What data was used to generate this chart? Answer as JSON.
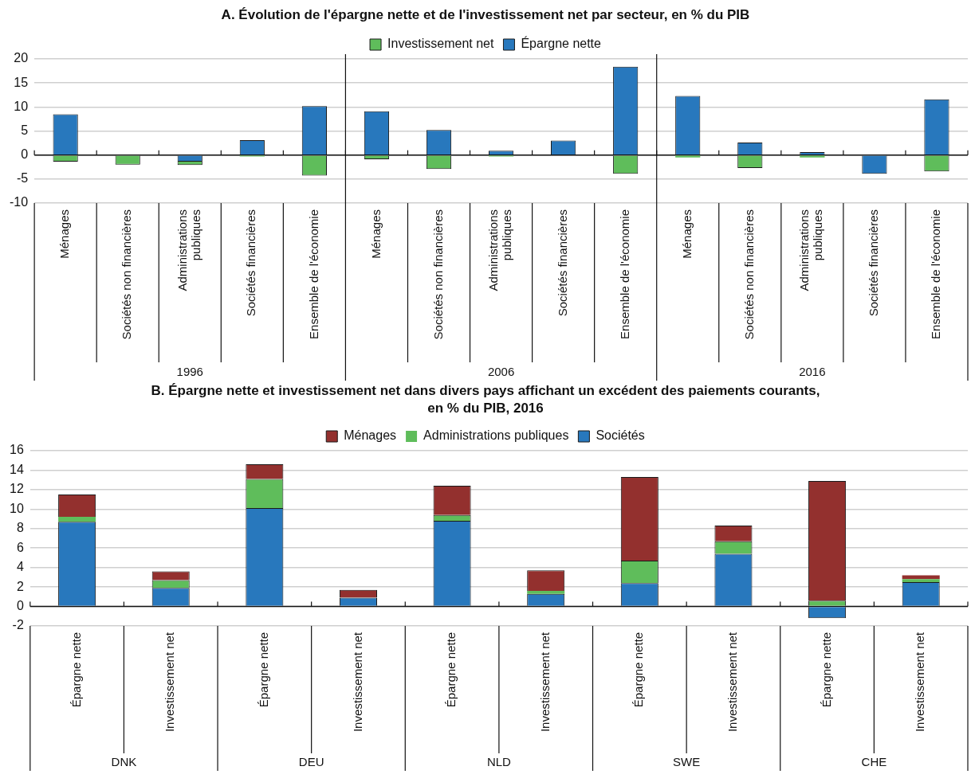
{
  "chart_data": [
    {
      "type": "bar",
      "title": "A. Évolution de l'épargne nette et de l'investissement net par secteur, en % du PIB",
      "categories": [
        "Ménages",
        "Sociétés non financières",
        "Administrations publiques",
        "Sociétés financières",
        "Ensemble de l'économie",
        "Ménages",
        "Sociétés non financières",
        "Administrations publiques",
        "Sociétés financières",
        "Ensemble de l'économie",
        "Ménages",
        "Sociétés non financières",
        "Administrations publiques",
        "Sociétés financières",
        "Ensemble de l'économie"
      ],
      "series": [
        {
          "name": "Épargne nette",
          "color": "#2878bd",
          "values": [
            8.5,
            0,
            -1.4,
            3.1,
            10.2,
            9.1,
            5.2,
            0.9,
            3.0,
            18.4,
            12.3,
            2.6,
            0.6,
            -3.9,
            11.6
          ]
        },
        {
          "name": "Investissement net",
          "color": "#5fbd5b",
          "values": [
            -1.4,
            -2.0,
            -0.7,
            -0.3,
            -4.3,
            -0.9,
            -2.9,
            -0.3,
            0,
            -3.9,
            -0.5,
            -2.7,
            -0.5,
            0,
            -3.4
          ]
        }
      ],
      "stacked": true,
      "ylim": [
        -10,
        20
      ],
      "yticks": [
        -10,
        -5,
        0,
        5,
        10,
        15,
        20
      ],
      "grid": "y",
      "legend": "top",
      "annotations": [
        "1996",
        "2006",
        "2016"
      ]
    },
    {
      "type": "bar",
      "title": "B. Épargne nette et investissement net dans divers pays affichant un excédent des paiements courants, en % du PIB, 2016",
      "categories": [
        "Épargne nette",
        "Investissement net",
        "Épargne nette",
        "Investissement net",
        "Épargne nette",
        "Investissement net",
        "Épargne nette",
        "Investissement net",
        "Épargne nette",
        "Investissement net"
      ],
      "series": [
        {
          "name": "Sociétés",
          "color": "#2878bd",
          "values": [
            8.7,
            1.9,
            10.1,
            0.9,
            8.8,
            1.3,
            2.4,
            5.4,
            -1.2,
            2.5
          ]
        },
        {
          "name": "Administrations publiques",
          "color": "#5fbd5b",
          "values": [
            0.5,
            0.8,
            3.0,
            0,
            0.6,
            0.3,
            2.3,
            1.3,
            0.6,
            0.3
          ]
        },
        {
          "name": "Ménages",
          "color": "#93302e",
          "values": [
            2.3,
            0.9,
            1.5,
            0.8,
            3.0,
            2.1,
            8.6,
            1.6,
            12.3,
            0.4
          ]
        }
      ],
      "stacked": true,
      "ylim": [
        -2,
        16
      ],
      "yticks": [
        -2,
        0,
        2,
        4,
        6,
        8,
        10,
        12,
        14,
        16
      ],
      "grid": "y",
      "legend": "top",
      "annotations": [
        "DNK",
        "DEU",
        "NLD",
        "SWE",
        "CHE"
      ]
    }
  ]
}
